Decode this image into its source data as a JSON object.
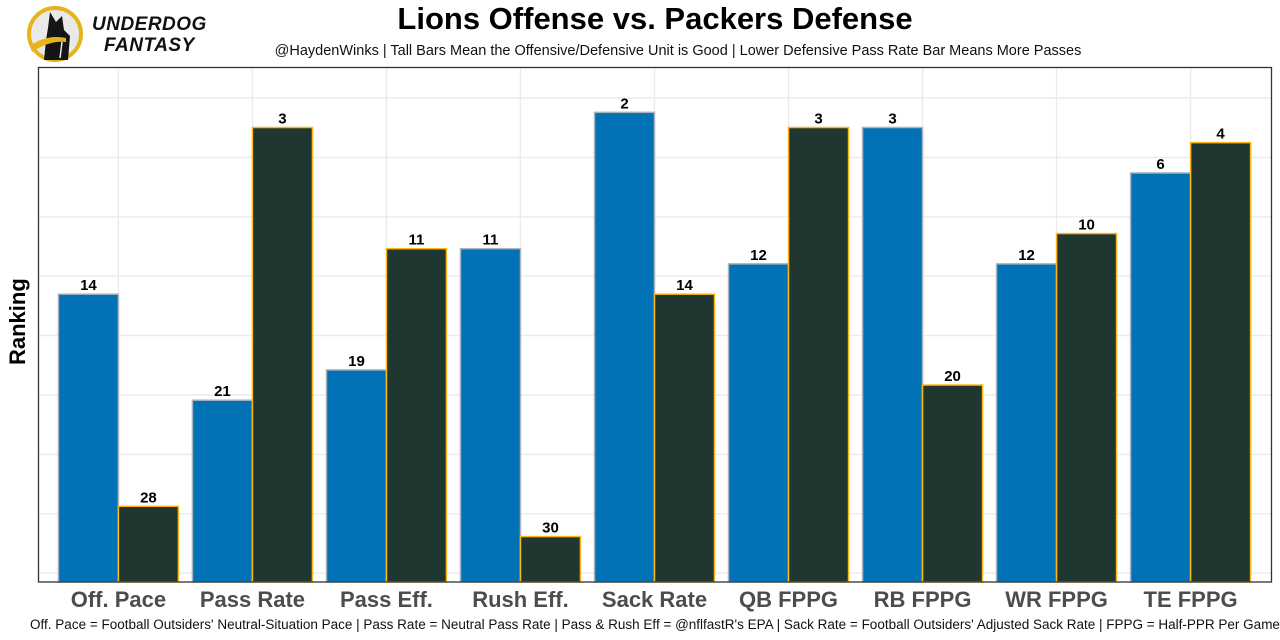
{
  "brand": {
    "name_line1": "UNDERDOG",
    "name_line2": "FANTASY",
    "logo_icon": "dog-silhouette-icon"
  },
  "colors": {
    "offense": "#0072b5",
    "offense_edge": "#a9b4bf",
    "defense": "#203731",
    "defense_edge": "#ffb612",
    "grid": "#ebebeb",
    "tick_label": "#4d4d4d"
  },
  "chart_data": {
    "type": "bar",
    "title": "Lions Offense vs. Packers Defense",
    "subtitle": "@HaydenWinks | Tall Bars Mean the Offensive/Defensive Unit is Good | Lower Defensive Pass Rate Bar Means More Passes",
    "caption": "Off. Pace = Football Outsiders' Neutral-Situation Pace | Pass Rate = Neutral Pass Rate | Pass & Rush Eff = @nflfastR's EPA | Sack Rate = Football Outsiders' Adjusted Sack Rate | FPPG = Half-PPR Per Game",
    "xlabel": "",
    "ylabel": "Ranking",
    "y_inverted_rank": true,
    "rank_max": 32,
    "grid": true,
    "legend": "none",
    "categories": [
      "Off. Pace",
      "Pass Rate",
      "Pass Eff.",
      "Rush Eff.",
      "Sack Rate",
      "QB FPPG",
      "RB FPPG",
      "WR FPPG",
      "TE FPPG"
    ],
    "series": [
      {
        "name": "Lions Offense",
        "values": [
          14,
          21,
          19,
          11,
          2,
          12,
          3,
          12,
          6
        ]
      },
      {
        "name": "Packers Defense",
        "values": [
          28,
          3,
          11,
          30,
          14,
          3,
          20,
          10,
          4
        ]
      }
    ]
  }
}
